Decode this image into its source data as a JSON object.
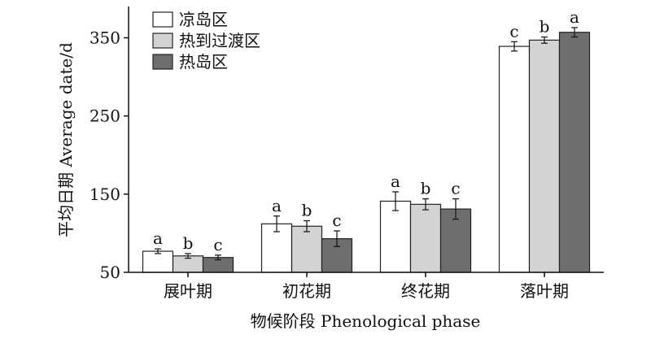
{
  "chart_data": {
    "type": "bar",
    "xlabel": "物候阶段 Phenological phase",
    "ylabel": "平均日期 Average date/d",
    "ylim": [
      50,
      390
    ],
    "yticks": [
      50,
      150,
      250,
      350
    ],
    "grid": false,
    "legend_position": "top-left",
    "categories": [
      "展叶期",
      "初花期",
      "终花期",
      "落叶期"
    ],
    "series": [
      {
        "name": "凉岛区",
        "color": "#ffffff",
        "values": [
          77,
          112,
          141,
          339
        ],
        "errors": [
          3,
          10,
          12,
          6
        ],
        "labels": [
          "a",
          "a",
          "a",
          "c"
        ]
      },
      {
        "name": "热到过渡区",
        "color": "#d3d3d3",
        "values": [
          71,
          109,
          137,
          347
        ],
        "errors": [
          3,
          7,
          7,
          4
        ],
        "labels": [
          "b",
          "b",
          "b",
          "b"
        ]
      },
      {
        "name": "热岛区",
        "color": "#6e6e6e",
        "values": [
          69,
          93,
          131,
          357
        ],
        "errors": [
          3,
          10,
          13,
          6
        ],
        "labels": [
          "c",
          "c",
          "c",
          "a"
        ]
      }
    ]
  }
}
